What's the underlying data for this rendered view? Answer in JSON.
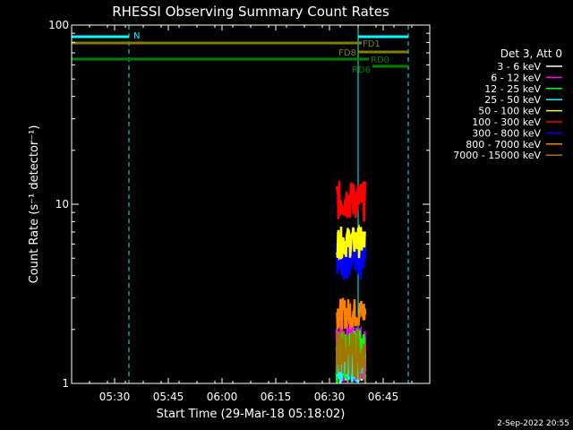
{
  "chart_data": {
    "type": "line",
    "title": "RHESSI Observing Summary Count Rates",
    "xlabel": "Start Time (29-Mar-18 05:18:02)",
    "ylabel": "Count Rate (s⁻¹ detector⁻¹)",
    "yscale": "log",
    "ylim": [
      1,
      100
    ],
    "x_range_minutes": [
      "05:18",
      "06:58"
    ],
    "x_ticks": [
      "05:30",
      "05:45",
      "06:00",
      "06:15",
      "06:30",
      "06:45"
    ],
    "y_ticks": [
      "1",
      "10",
      "100"
    ],
    "legend_title": "Det 3, Att 0",
    "legend_position": "right",
    "series": [
      {
        "name": "3 - 6 keV",
        "color": "#ffffff",
        "range": [
          1.0,
          1.8
        ]
      },
      {
        "name": "6 - 12 keV",
        "color": "#ff00ff",
        "range": [
          1.0,
          2.2
        ]
      },
      {
        "name": "12 - 25 keV",
        "color": "#00ff00",
        "range": [
          1.0,
          2.0
        ]
      },
      {
        "name": "25 - 50 keV",
        "color": "#00ffff",
        "range": [
          1.0,
          1.6
        ]
      },
      {
        "name": "50 - 100 keV",
        "color": "#ffff00",
        "range": [
          5.0,
          7.5
        ]
      },
      {
        "name": "100 - 300 keV",
        "color": "#ff0000",
        "range": [
          8.0,
          13.5
        ]
      },
      {
        "name": "300 - 800 keV",
        "color": "#0000ff",
        "range": [
          3.8,
          6.5
        ]
      },
      {
        "name": "800 - 7000 keV",
        "color": "#ff8000",
        "range": [
          2.0,
          3.0
        ]
      },
      {
        "name": "7000 - 15000 keV",
        "color": "#a07800",
        "range": [
          1.0,
          2.0
        ]
      }
    ],
    "data_interval": [
      "06:32",
      "06:40"
    ],
    "flags": [
      {
        "label": "N",
        "color": "#00ffff",
        "segments": [
          [
            "05:18",
            "05:34"
          ],
          [
            "06:38",
            "06:52"
          ]
        ]
      },
      {
        "label": "FD1",
        "color": "#808000",
        "segments": [
          [
            "05:18",
            "06:39"
          ]
        ]
      },
      {
        "label": "FD8",
        "color": "#808000",
        "segments": [
          [
            "06:38",
            "06:52"
          ]
        ]
      },
      {
        "label": "RD0",
        "color": "#008000",
        "segments": [
          [
            "05:18",
            "06:41"
          ]
        ]
      },
      {
        "label": "RD6",
        "color": "#008000",
        "segments": [
          [
            "06:42",
            "06:52"
          ]
        ]
      }
    ],
    "vlines": [
      {
        "time": "05:18",
        "color": "#00ffff",
        "style": "solid"
      },
      {
        "time": "05:34",
        "color": "#00ffff",
        "style": "dashed"
      },
      {
        "time": "06:38",
        "color": "#00ffff",
        "style": "solid"
      },
      {
        "time": "06:52",
        "color": "#00ffff",
        "style": "dashed"
      }
    ],
    "timestamp": "2-Sep-2022 20:55"
  }
}
